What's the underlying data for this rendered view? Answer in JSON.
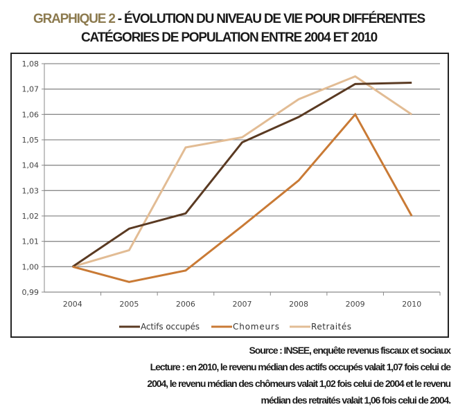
{
  "title": {
    "label": "GRAPHIQUE 2",
    "line1": " - ÉVOLUTION DU NIVEAU DE VIE POUR DIFFÉRENTES",
    "line2": "CATÉGORIES DE POPULATION ENTRE 2004 ET 2010"
  },
  "chart_data": {
    "type": "line",
    "categories": [
      "2004",
      "2005",
      "2006",
      "2007",
      "2008",
      "2009",
      "2010"
    ],
    "ylim": [
      0.99,
      1.08
    ],
    "yticks": [
      "0,99",
      "1,00",
      "1,01",
      "1,02",
      "1,03",
      "1,04",
      "1,05",
      "1,06",
      "1,07",
      "1,08"
    ],
    "grid": true,
    "legend": "bottom",
    "series": [
      {
        "name": "Actifs occupés",
        "color": "#5a3a22",
        "values": [
          1.0,
          1.015,
          1.021,
          1.049,
          1.059,
          1.072,
          1.0725
        ]
      },
      {
        "name": "Chomeurs",
        "color": "#c97a35",
        "values": [
          1.0,
          0.994,
          0.9985,
          1.016,
          1.034,
          1.06,
          1.02
        ]
      },
      {
        "name": "Retraités",
        "color": "#e2bc94",
        "values": [
          1.0,
          1.0065,
          1.047,
          1.051,
          1.066,
          1.075,
          1.06
        ]
      }
    ]
  },
  "notes": {
    "source": "Source : INSEE, enquête revenus fiscaux et sociaux",
    "lecture1": "Lecture : en 2010, le revenu médian des actifs occupés valait 1,07 fois celui de",
    "lecture2": "2004, le revenu médian des chômeurs valait 1,02 fois celui de 2004 et le revenu",
    "lecture3": "médian des retraités valait 1,06 fois celui de 2004."
  }
}
